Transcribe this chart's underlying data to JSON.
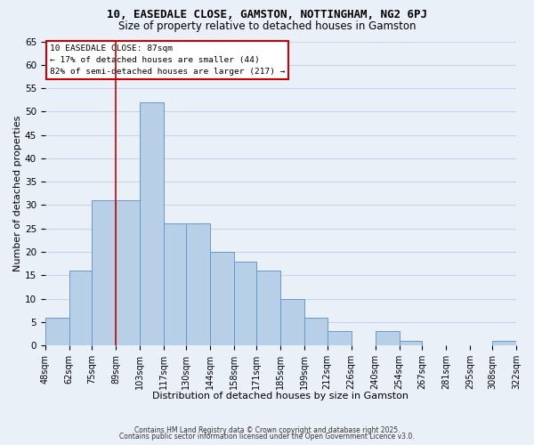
{
  "title1": "10, EASEDALE CLOSE, GAMSTON, NOTTINGHAM, NG2 6PJ",
  "title2": "Size of property relative to detached houses in Gamston",
  "xlabel": "Distribution of detached houses by size in Gamston",
  "ylabel": "Number of detached properties",
  "annotation_title": "10 EASEDALE CLOSE: 87sqm",
  "annotation_line1": "← 17% of detached houses are smaller (44)",
  "annotation_line2": "82% of semi-detached houses are larger (217) →",
  "property_size": 87,
  "bin_edges": [
    48,
    62,
    75,
    89,
    103,
    117,
    130,
    144,
    158,
    171,
    185,
    199,
    212,
    226,
    240,
    254,
    267,
    281,
    295,
    308,
    322
  ],
  "bin_labels": [
    "48sqm",
    "62sqm",
    "75sqm",
    "89sqm",
    "103sqm",
    "117sqm",
    "130sqm",
    "144sqm",
    "158sqm",
    "171sqm",
    "185sqm",
    "199sqm",
    "212sqm",
    "226sqm",
    "240sqm",
    "254sqm",
    "267sqm",
    "281sqm",
    "295sqm",
    "308sqm",
    "322sqm"
  ],
  "counts": [
    6,
    16,
    31,
    31,
    52,
    26,
    26,
    20,
    18,
    16,
    10,
    6,
    3,
    0,
    3,
    1,
    0,
    0,
    0,
    1
  ],
  "bar_color": "#b8cfe8",
  "bar_edge_color": "#6699cc",
  "vline_color": "#cc0000",
  "vline_x": 89,
  "annotation_box_color": "#ffffff",
  "annotation_box_edge": "#cc0000",
  "ylim": [
    0,
    65
  ],
  "yticks": [
    0,
    5,
    10,
    15,
    20,
    25,
    30,
    35,
    40,
    45,
    50,
    55,
    60,
    65
  ],
  "grid_color": "#c8d4e8",
  "bg_color": "#eaf0f8",
  "footer1": "Contains HM Land Registry data © Crown copyright and database right 2025.",
  "footer2": "Contains public sector information licensed under the Open Government Licence v3.0.",
  "title_fontsize": 9,
  "subtitle_fontsize": 8.5
}
